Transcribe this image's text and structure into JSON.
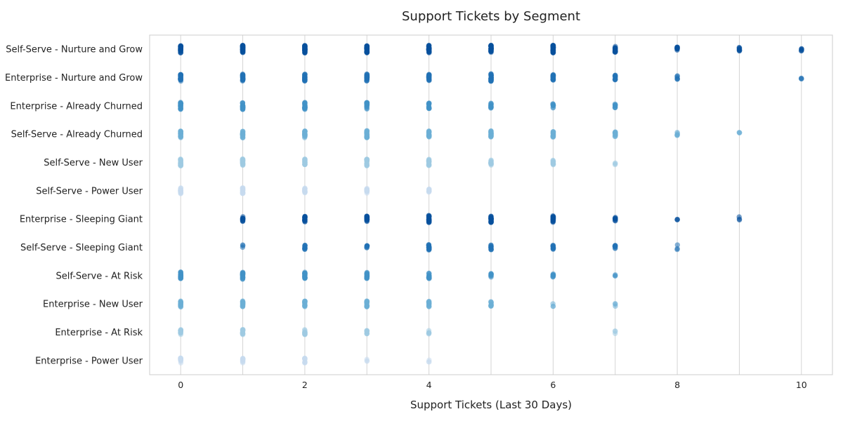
{
  "chart_data": {
    "type": "strip",
    "title": "Support Tickets by Segment",
    "xlabel": "Support Tickets (Last 30 Days)",
    "ylabel": "",
    "xlim": [
      -0.5,
      10.5
    ],
    "xticks": [
      0,
      2,
      4,
      6,
      8,
      10
    ],
    "grid": "vertical",
    "legend": "none",
    "categories": [
      "Self-Serve - Nurture and Grow",
      "Enterprise - Nurture and Grow",
      "Enterprise - Already Churned",
      "Self-Serve - Already Churned",
      "Self-Serve - New User",
      "Self-Serve - Power User",
      "Enterprise - Sleeping Giant",
      "Self-Serve - Sleeping Giant",
      "Self-Serve - At Risk",
      "Enterprise - New User",
      "Enterprise - At Risk",
      "Enterprise - Power User"
    ],
    "colors": [
      "#08519c",
      "#2171b5",
      "#4292c6",
      "#6baed6",
      "#9ecae1",
      "#c6dbef",
      "#08519c",
      "#2171b5",
      "#4292c6",
      "#6baed6",
      "#9ecae1",
      "#c6dbef"
    ],
    "series": [
      {
        "category": "Self-Serve - Nurture and Grow",
        "x": [
          0,
          1,
          2,
          3,
          4,
          5,
          6,
          7,
          8,
          9,
          10
        ],
        "density": [
          12,
          12,
          12,
          12,
          10,
          12,
          12,
          6,
          4,
          3,
          2
        ]
      },
      {
        "category": "Enterprise - Nurture and Grow",
        "x": [
          0,
          1,
          2,
          3,
          4,
          5,
          6,
          7,
          8,
          10
        ],
        "density": [
          8,
          8,
          8,
          8,
          7,
          8,
          6,
          4,
          2,
          1
        ]
      },
      {
        "category": "Enterprise - Already Churned",
        "x": [
          0,
          1,
          2,
          3,
          4,
          5,
          6,
          7
        ],
        "density": [
          8,
          8,
          8,
          7,
          5,
          5,
          3,
          3
        ]
      },
      {
        "category": "Self-Serve - Already Churned",
        "x": [
          0,
          1,
          2,
          3,
          4,
          5,
          6,
          7,
          8,
          9
        ],
        "density": [
          8,
          8,
          8,
          8,
          7,
          7,
          6,
          5,
          2,
          1
        ]
      },
      {
        "category": "Self-Serve - New User",
        "x": [
          0,
          1,
          2,
          3,
          4,
          5,
          6,
          7
        ],
        "density": [
          8,
          8,
          7,
          7,
          6,
          5,
          4,
          1
        ]
      },
      {
        "category": "Self-Serve - Power User",
        "x": [
          0,
          1,
          2,
          3,
          4
        ],
        "density": [
          6,
          6,
          5,
          4,
          3
        ]
      },
      {
        "category": "Enterprise - Sleeping Giant",
        "x": [
          1,
          2,
          3,
          4,
          5,
          6,
          7,
          8,
          9
        ],
        "density": [
          4,
          6,
          7,
          8,
          8,
          7,
          3,
          1,
          1
        ]
      },
      {
        "category": "Self-Serve - Sleeping Giant",
        "x": [
          1,
          2,
          3,
          4,
          5,
          6,
          7,
          8
        ],
        "density": [
          1,
          4,
          3,
          6,
          4,
          4,
          3,
          1
        ]
      },
      {
        "category": "Self-Serve - At Risk",
        "x": [
          0,
          1,
          2,
          3,
          4,
          5,
          6,
          7
        ],
        "density": [
          8,
          8,
          8,
          7,
          6,
          3,
          3,
          1
        ]
      },
      {
        "category": "Enterprise - New User",
        "x": [
          0,
          1,
          2,
          3,
          4,
          5,
          6,
          7
        ],
        "density": [
          6,
          6,
          6,
          6,
          5,
          4,
          1,
          1
        ]
      },
      {
        "category": "Enterprise - At Risk",
        "x": [
          0,
          1,
          2,
          3,
          4,
          7
        ],
        "density": [
          5,
          5,
          5,
          3,
          2,
          1
        ]
      },
      {
        "category": "Enterprise - Power User",
        "x": [
          0,
          1,
          2,
          3,
          4
        ],
        "density": [
          5,
          4,
          4,
          1,
          1
        ]
      }
    ]
  }
}
